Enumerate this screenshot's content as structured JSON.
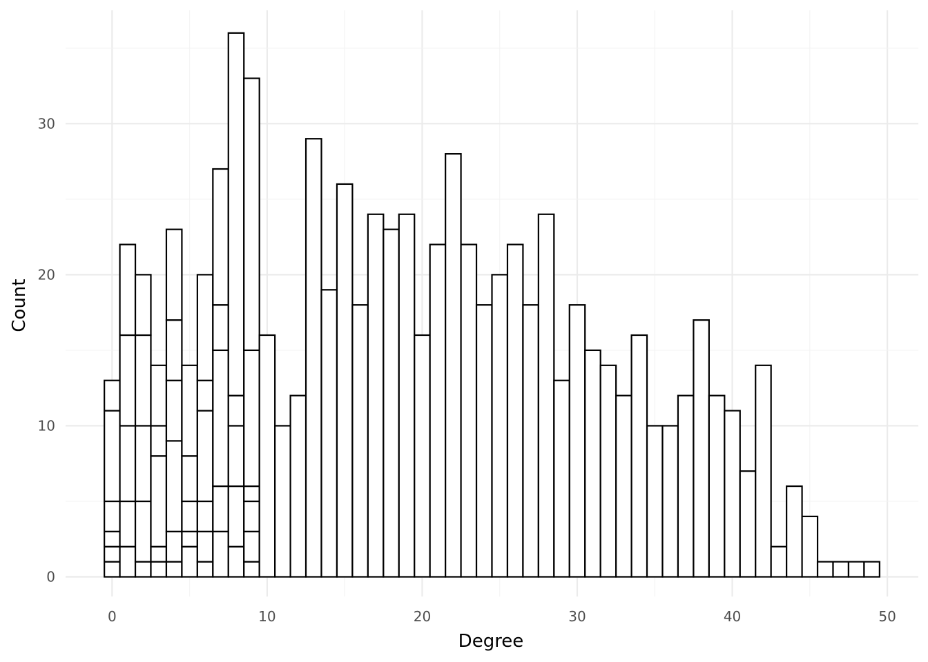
{
  "chart_data": {
    "type": "bar",
    "variant": "stacked histogram, white fill, black outline, no legend",
    "xlabel": "Degree",
    "ylabel": "Count",
    "xlim": [
      -3,
      52
    ],
    "ylim": [
      -1.3,
      37.5
    ],
    "x_ticks": [
      0,
      10,
      20,
      30,
      40,
      50
    ],
    "y_ticks": [
      0,
      10,
      20,
      30
    ],
    "grid": true,
    "x": [
      0,
      1,
      2,
      3,
      4,
      5,
      6,
      7,
      8,
      9,
      10,
      11,
      12,
      13,
      14,
      15,
      16,
      17,
      18,
      19,
      20,
      21,
      22,
      23,
      24,
      25,
      26,
      27,
      28,
      29,
      30,
      31,
      32,
      33,
      34,
      35,
      36,
      37,
      38,
      39,
      40,
      41,
      42,
      43,
      44,
      45,
      46,
      47,
      48,
      49
    ],
    "totals": [
      13,
      22,
      20,
      14,
      23,
      14,
      20,
      27,
      36,
      33,
      16,
      10,
      12,
      29,
      19,
      26,
      18,
      24,
      23,
      24,
      16,
      22,
      28,
      22,
      18,
      20,
      22,
      18,
      24,
      13,
      18,
      15,
      14,
      12,
      16,
      10,
      10,
      12,
      17,
      12,
      11,
      7,
      14,
      2,
      6,
      4,
      1,
      1,
      1,
      1
    ],
    "segment_boundaries": {
      "0": [
        1,
        2,
        3,
        5,
        11,
        13
      ],
      "1": [
        2,
        5,
        10,
        16,
        22
      ],
      "2": [
        1,
        5,
        10,
        16,
        20
      ],
      "3": [
        1,
        2,
        8,
        10,
        14
      ],
      "4": [
        1,
        3,
        9,
        13,
        17,
        23
      ],
      "5": [
        2,
        3,
        5,
        8,
        14
      ],
      "6": [
        1,
        3,
        5,
        11,
        13,
        20
      ],
      "7": [
        3,
        6,
        15,
        18,
        27
      ],
      "8": [
        2,
        6,
        10,
        12,
        36
      ],
      "9": [
        1,
        3,
        5,
        6,
        15,
        33
      ]
    }
  }
}
